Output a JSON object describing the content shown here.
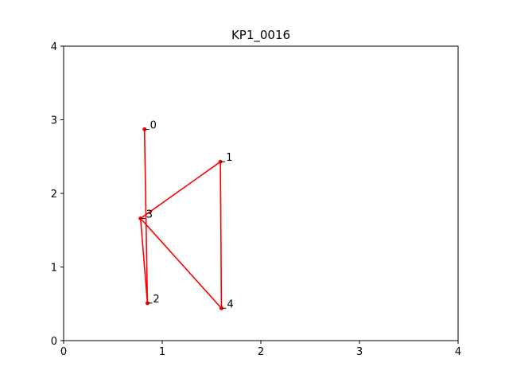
{
  "chart_data": {
    "type": "line",
    "title": "KP1_0016",
    "xlabel": "",
    "ylabel": "",
    "xlim": [
      0,
      4
    ],
    "ylim": [
      0,
      4
    ],
    "x_ticks": [
      0,
      1,
      2,
      3,
      4
    ],
    "y_ticks": [
      0,
      1,
      2,
      3,
      4
    ],
    "x_tick_labels": [
      "0",
      "1",
      "2",
      "3",
      "4"
    ],
    "y_tick_labels": [
      "0",
      "1",
      "2",
      "3",
      "4"
    ],
    "grid": false,
    "line_color": "#ff0000",
    "points": [
      {
        "label": "0",
        "x": 0.82,
        "y": 2.87
      },
      {
        "label": "1",
        "x": 1.59,
        "y": 2.43
      },
      {
        "label": "2",
        "x": 0.85,
        "y": 0.51
      },
      {
        "label": "3",
        "x": 0.78,
        "y": 1.66
      },
      {
        "label": "4",
        "x": 1.6,
        "y": 0.44
      }
    ],
    "path_order": [
      0,
      2,
      3,
      1,
      4,
      3
    ]
  }
}
